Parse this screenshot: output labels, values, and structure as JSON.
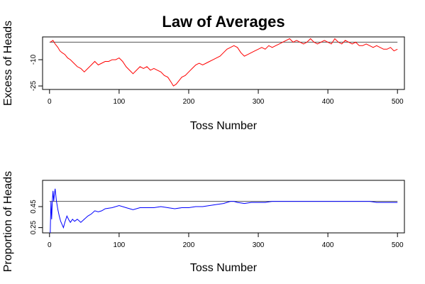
{
  "chart_data": [
    {
      "type": "line",
      "title": "Law of Averages",
      "xlabel": "Toss Number",
      "ylabel": "Excess of Heads",
      "xlim": [
        -10,
        510
      ],
      "ylim": [
        -27,
        3
      ],
      "x_ticks": [
        0,
        100,
        200,
        300,
        400,
        500
      ],
      "y_ticks": [
        -25,
        -10
      ],
      "reference_line": 0,
      "grid": false,
      "colors": {
        "series": "#ff0000",
        "reference": "#555555",
        "frame": "#000000"
      },
      "series": [
        {
          "x": [
            1,
            5,
            8,
            12,
            15,
            18,
            22,
            26,
            30,
            35,
            40,
            45,
            50,
            55,
            60,
            65,
            70,
            75,
            80,
            85,
            90,
            95,
            100,
            105,
            110,
            115,
            120,
            125,
            130,
            135,
            140,
            145,
            150,
            155,
            160,
            165,
            170,
            175,
            178,
            182,
            186,
            190,
            195,
            200,
            205,
            210,
            215,
            220,
            225,
            230,
            235,
            240,
            245,
            250,
            255,
            260,
            265,
            270,
            275,
            280,
            285,
            290,
            295,
            300,
            305,
            310,
            315,
            320,
            325,
            330,
            335,
            340,
            345,
            350,
            355,
            360,
            365,
            370,
            375,
            380,
            385,
            390,
            395,
            400,
            405,
            410,
            415,
            420,
            425,
            430,
            435,
            440,
            445,
            450,
            455,
            460,
            465,
            470,
            475,
            480,
            485,
            490,
            495,
            500
          ],
          "y": [
            0,
            1,
            -1,
            -3,
            -5,
            -6,
            -7,
            -9,
            -10,
            -12,
            -14,
            -15,
            -17,
            -15,
            -13,
            -11,
            -13,
            -12,
            -11,
            -11,
            -10,
            -10,
            -9,
            -11,
            -14,
            -16,
            -18,
            -16,
            -14,
            -15,
            -14,
            -16,
            -15,
            -16,
            -17,
            -19,
            -20,
            -23,
            -25,
            -24,
            -22,
            -20,
            -19,
            -17,
            -15,
            -13,
            -12,
            -13,
            -12,
            -11,
            -10,
            -9,
            -8,
            -6,
            -4,
            -3,
            -2,
            -3,
            -6,
            -8,
            -7,
            -6,
            -5,
            -4,
            -3,
            -4,
            -2,
            -3,
            -2,
            -1,
            0,
            1,
            2,
            0,
            1,
            0,
            -1,
            0,
            2,
            0,
            -1,
            0,
            1,
            0,
            -1,
            2,
            0,
            -1,
            1,
            0,
            -1,
            0,
            -2,
            -2,
            -1,
            -2,
            -3,
            -2,
            -3,
            -4,
            -4,
            -3,
            -5,
            -4
          ]
        }
      ]
    },
    {
      "type": "line",
      "title": "",
      "xlabel": "Toss Number",
      "ylabel": "Proportion of Heads",
      "xlim": [
        -10,
        510
      ],
      "ylim": [
        0.2,
        0.7
      ],
      "x_ticks": [
        0,
        100,
        200,
        300,
        400,
        500
      ],
      "y_ticks": [
        0.25,
        0.45
      ],
      "reference_line": 0.5,
      "grid": false,
      "colors": {
        "series": "#0000ff",
        "reference": "#555555",
        "frame": "#000000"
      },
      "series": [
        {
          "x": [
            1,
            2,
            3,
            4,
            5,
            6,
            7,
            8,
            10,
            12,
            14,
            16,
            18,
            20,
            22,
            25,
            28,
            30,
            33,
            36,
            40,
            45,
            50,
            55,
            60,
            65,
            70,
            75,
            80,
            90,
            100,
            110,
            120,
            130,
            140,
            150,
            160,
            170,
            180,
            190,
            200,
            210,
            220,
            230,
            240,
            250,
            255,
            260,
            265,
            270,
            280,
            290,
            300,
            310,
            320,
            330,
            340,
            350,
            360,
            370,
            380,
            390,
            400,
            410,
            420,
            430,
            440,
            450,
            460,
            470,
            480,
            490,
            500
          ],
          "y": [
            0.2,
            0.5,
            0.33,
            0.5,
            0.6,
            0.5,
            0.57,
            0.62,
            0.5,
            0.42,
            0.36,
            0.31,
            0.28,
            0.25,
            0.3,
            0.36,
            0.32,
            0.3,
            0.33,
            0.31,
            0.33,
            0.3,
            0.33,
            0.36,
            0.38,
            0.41,
            0.4,
            0.41,
            0.43,
            0.44,
            0.46,
            0.44,
            0.42,
            0.44,
            0.44,
            0.44,
            0.45,
            0.44,
            0.43,
            0.44,
            0.44,
            0.45,
            0.45,
            0.46,
            0.47,
            0.48,
            0.49,
            0.5,
            0.5,
            0.49,
            0.48,
            0.49,
            0.49,
            0.49,
            0.5,
            0.5,
            0.5,
            0.5,
            0.5,
            0.5,
            0.5,
            0.5,
            0.5,
            0.5,
            0.5,
            0.5,
            0.5,
            0.5,
            0.5,
            0.49,
            0.49,
            0.49,
            0.49
          ]
        }
      ]
    }
  ]
}
